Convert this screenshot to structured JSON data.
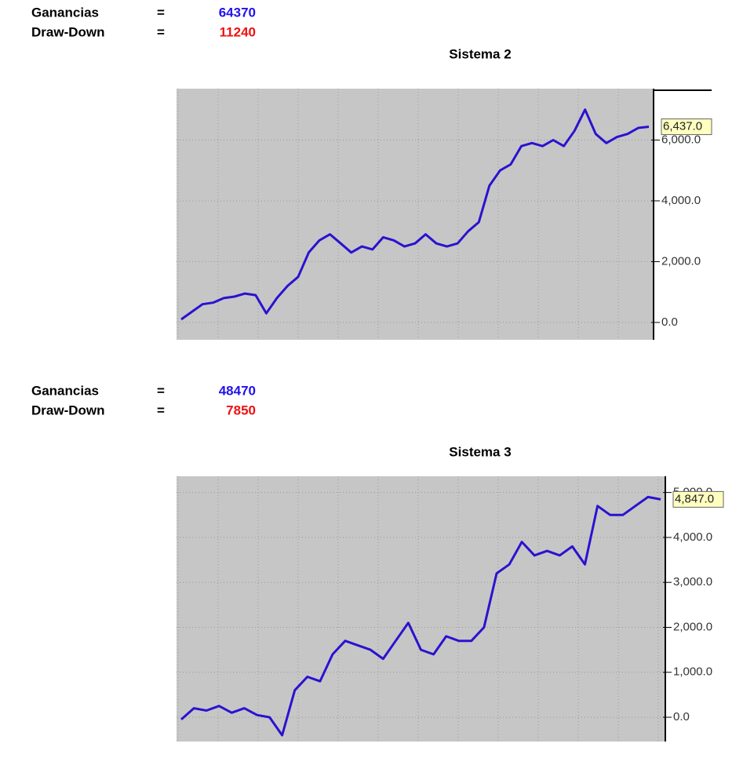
{
  "chart_data": [
    {
      "type": "line",
      "title": "Sistema 2",
      "stats": [
        {
          "label": "Ganancias",
          "separator": "=",
          "value": 64370,
          "color": "#2211ee"
        },
        {
          "label": "Draw-Down",
          "separator": "=",
          "value": 11240,
          "color": "#ee1111"
        }
      ],
      "color": "#2a12d0",
      "values": [
        100,
        350,
        600,
        650,
        800,
        850,
        950,
        900,
        300,
        800,
        1200,
        1500,
        2300,
        2700,
        2900,
        2600,
        2300,
        2500,
        2400,
        2800,
        2700,
        2500,
        2600,
        2900,
        2600,
        2500,
        2600,
        3000,
        3300,
        4500,
        5000,
        5200,
        5800,
        5900,
        5800,
        6000,
        5800,
        6300,
        7000,
        6200,
        5900,
        6100,
        6200,
        6400,
        6437
      ],
      "value_labels": [
        null,
        null,
        null,
        null,
        null,
        null,
        null,
        null,
        null,
        null,
        null,
        null,
        null,
        null,
        null,
        null,
        null,
        null,
        null,
        null,
        null,
        null,
        null,
        null,
        null,
        null,
        null,
        null,
        null,
        null,
        null,
        null,
        null,
        null,
        null,
        null,
        null,
        null,
        null,
        null,
        null,
        null,
        null,
        null,
        "6,437.0"
      ],
      "ylim": [
        -570,
        7690
      ],
      "yticks": [
        {
          "value": 0,
          "label": "0.0"
        },
        {
          "value": 2000,
          "label": "2,000.0"
        },
        {
          "value": 4000,
          "label": "4,000.0"
        },
        {
          "value": 6000,
          "label": "6,000.0"
        }
      ],
      "grid": true
    },
    {
      "type": "line",
      "title": "Sistema 3",
      "stats": [
        {
          "label": "Ganancias",
          "separator": "=",
          "value": 48470,
          "color": "#2211ee"
        },
        {
          "label": "Draw-Down",
          "separator": "=",
          "value": 7850,
          "color": "#ee1111"
        }
      ],
      "color": "#2a12d0",
      "values": [
        -50,
        200,
        150,
        250,
        100,
        200,
        50,
        0,
        -400,
        600,
        900,
        800,
        1400,
        1700,
        1600,
        1500,
        1300,
        1700,
        2100,
        1500,
        1400,
        1800,
        1700,
        1700,
        2000,
        3200,
        3400,
        3900,
        3600,
        3700,
        3600,
        3800,
        3400,
        4700,
        4500,
        4500,
        4700,
        4900,
        4847
      ],
      "value_labels": [
        null,
        null,
        null,
        null,
        null,
        null,
        null,
        null,
        null,
        null,
        null,
        null,
        null,
        null,
        null,
        null,
        null,
        null,
        null,
        null,
        null,
        null,
        null,
        null,
        null,
        null,
        null,
        null,
        null,
        null,
        null,
        null,
        null,
        null,
        null,
        null,
        null,
        null,
        "4,847.0"
      ],
      "ylim": [
        -540,
        5360
      ],
      "yticks": [
        {
          "value": 0,
          "label": "0.0"
        },
        {
          "value": 1000,
          "label": "1,000.0"
        },
        {
          "value": 2000,
          "label": "2,000.0"
        },
        {
          "value": 3000,
          "label": "3,000.0"
        },
        {
          "value": 4000,
          "label": "4,000.0"
        },
        {
          "value": 5000,
          "label": "5,000.0"
        }
      ],
      "grid": true
    }
  ]
}
